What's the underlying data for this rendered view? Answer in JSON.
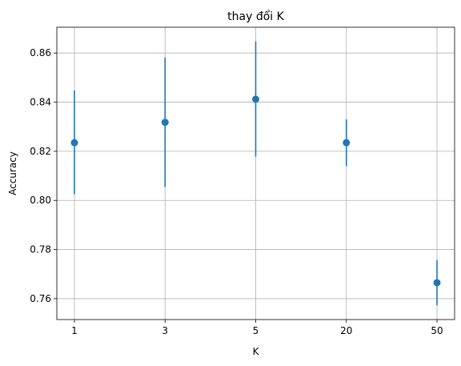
{
  "chart_data": {
    "type": "scatter",
    "title": "thay đổi K",
    "xlabel": "K",
    "ylabel": "Accuracy",
    "categories": [
      "1",
      "3",
      "5",
      "20",
      "50"
    ],
    "series": [
      {
        "values": [
          0.8235,
          0.8318,
          0.8412,
          0.8235,
          0.7665
        ],
        "error_low": [
          0.8025,
          0.8055,
          0.8178,
          0.814,
          0.7573
        ],
        "error_high": [
          0.8448,
          0.8582,
          0.8647,
          0.833,
          0.7757
        ]
      }
    ],
    "ylim": [
      0.7515,
      0.8705
    ],
    "yticks": [
      0.76,
      0.78,
      0.8,
      0.82,
      0.84,
      0.86
    ],
    "ytick_labels": [
      "0.76",
      "0.78",
      "0.80",
      "0.82",
      "0.84",
      "0.86"
    ],
    "grid": true,
    "colors": {
      "series": "#1f77b4",
      "grid": "#b0b0b0"
    }
  }
}
